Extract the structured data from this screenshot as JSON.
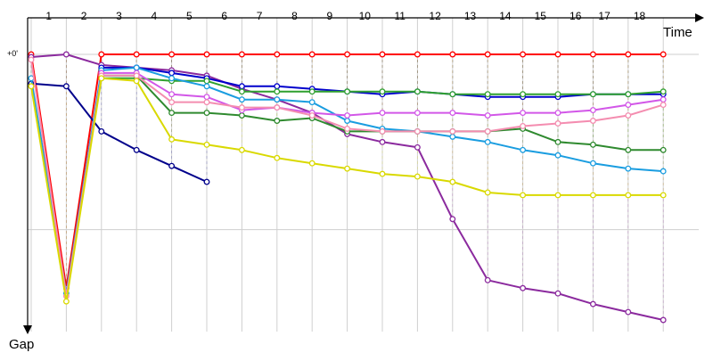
{
  "chart_data": {
    "type": "line",
    "title": "",
    "xlabel": "Time",
    "ylabel": "Gap",
    "zero_label": "+0'",
    "laps": [
      "1",
      "2",
      "3",
      "4",
      "5",
      "6",
      "7",
      "8",
      "9",
      "10",
      "11",
      "12",
      "13",
      "14",
      "15",
      "16",
      "17",
      "18"
    ],
    "x_range": [
      1,
      20
    ],
    "y_range": [
      0,
      100
    ],
    "y_axis_direction": "down",
    "grid": true,
    "legend": "none",
    "series": [
      {
        "color": "#ff0000",
        "points": [
          [
            1,
            0
          ],
          [
            2,
            88
          ],
          [
            3,
            0
          ],
          [
            4,
            0
          ],
          [
            5,
            0
          ],
          [
            6,
            0
          ],
          [
            7,
            0
          ],
          [
            8,
            0
          ],
          [
            9,
            0
          ],
          [
            10,
            0
          ],
          [
            11,
            0
          ],
          [
            12,
            0
          ],
          [
            13,
            0
          ],
          [
            14,
            0
          ],
          [
            15,
            0
          ],
          [
            16,
            0
          ],
          [
            17,
            0
          ],
          [
            18,
            0
          ],
          [
            19,
            0
          ]
        ]
      },
      {
        "color": "#8b2a9e",
        "points": [
          [
            1,
            1
          ],
          [
            2,
            0
          ],
          [
            3,
            4
          ],
          [
            4,
            5
          ],
          [
            5,
            6
          ],
          [
            6,
            8
          ],
          [
            7,
            13
          ],
          [
            8,
            17
          ],
          [
            9,
            22
          ],
          [
            10,
            30
          ],
          [
            11,
            33
          ],
          [
            12,
            35
          ],
          [
            13,
            62
          ],
          [
            14,
            85
          ],
          [
            15,
            88
          ],
          [
            16,
            90
          ],
          [
            17,
            94
          ],
          [
            18,
            97
          ],
          [
            19,
            100
          ]
        ]
      },
      {
        "color": "#00008b",
        "points": [
          [
            1,
            11
          ],
          [
            2,
            12
          ],
          [
            3,
            29
          ],
          [
            4,
            36
          ],
          [
            5,
            42
          ],
          [
            6,
            48
          ]
        ]
      },
      {
        "color": "#0000cc",
        "points": [
          [
            3,
            5
          ],
          [
            4,
            5
          ],
          [
            5,
            7
          ],
          [
            6,
            9
          ],
          [
            7,
            12
          ],
          [
            8,
            12
          ],
          [
            9,
            13
          ],
          [
            10,
            14
          ],
          [
            11,
            15
          ],
          [
            12,
            14
          ],
          [
            13,
            15
          ],
          [
            14,
            16
          ],
          [
            15,
            16
          ],
          [
            16,
            16
          ],
          [
            17,
            15
          ],
          [
            18,
            15
          ],
          [
            19,
            15
          ]
        ]
      },
      {
        "color": "#2fa02f",
        "points": [
          [
            3,
            9
          ],
          [
            4,
            9
          ],
          [
            5,
            10
          ],
          [
            6,
            10
          ],
          [
            7,
            14
          ],
          [
            8,
            14
          ],
          [
            9,
            14
          ],
          [
            10,
            14
          ],
          [
            11,
            14
          ],
          [
            12,
            14
          ],
          [
            13,
            15
          ],
          [
            14,
            15
          ],
          [
            15,
            15
          ],
          [
            16,
            15
          ],
          [
            17,
            15
          ],
          [
            18,
            15
          ],
          [
            19,
            14
          ]
        ]
      },
      {
        "color": "#1a9de0",
        "points": [
          [
            1,
            9
          ],
          [
            2,
            90
          ],
          [
            3,
            6
          ],
          [
            4,
            5
          ],
          [
            5,
            9
          ],
          [
            6,
            12
          ],
          [
            7,
            17
          ],
          [
            8,
            17
          ],
          [
            9,
            18
          ],
          [
            10,
            25
          ],
          [
            11,
            28
          ],
          [
            12,
            29
          ],
          [
            13,
            31
          ],
          [
            14,
            33
          ],
          [
            15,
            36
          ],
          [
            16,
            38
          ],
          [
            17,
            41
          ],
          [
            18,
            43
          ],
          [
            19,
            44
          ]
        ]
      },
      {
        "color": "#2f8a2f",
        "points": [
          [
            3,
            8
          ],
          [
            4,
            8
          ],
          [
            5,
            22
          ],
          [
            6,
            22
          ],
          [
            7,
            23
          ],
          [
            8,
            25
          ],
          [
            9,
            24
          ],
          [
            10,
            29
          ],
          [
            11,
            29
          ],
          [
            12,
            29
          ],
          [
            13,
            29
          ],
          [
            14,
            29
          ],
          [
            15,
            28
          ],
          [
            16,
            33
          ],
          [
            17,
            34
          ],
          [
            18,
            36
          ],
          [
            19,
            36
          ]
        ]
      },
      {
        "color": "#d257e8",
        "points": [
          [
            3,
            7
          ],
          [
            4,
            7
          ],
          [
            5,
            15
          ],
          [
            6,
            16
          ],
          [
            7,
            21
          ],
          [
            8,
            20
          ],
          [
            9,
            22
          ],
          [
            10,
            23
          ],
          [
            11,
            22
          ],
          [
            12,
            22
          ],
          [
            13,
            22
          ],
          [
            14,
            23
          ],
          [
            15,
            22
          ],
          [
            16,
            22
          ],
          [
            17,
            21
          ],
          [
            18,
            19
          ],
          [
            19,
            17
          ]
        ]
      },
      {
        "color": "#f48db0",
        "points": [
          [
            1,
            2
          ],
          [
            2,
            91
          ],
          [
            3,
            8
          ],
          [
            4,
            8
          ],
          [
            5,
            18
          ],
          [
            6,
            18
          ],
          [
            7,
            20
          ],
          [
            8,
            20
          ],
          [
            9,
            23
          ],
          [
            10,
            28
          ],
          [
            11,
            29
          ],
          [
            12,
            29
          ],
          [
            13,
            29
          ],
          [
            14,
            29
          ],
          [
            15,
            27
          ],
          [
            16,
            26
          ],
          [
            17,
            25
          ],
          [
            18,
            23
          ],
          [
            19,
            19
          ]
        ]
      },
      {
        "color": "#d9d900",
        "points": [
          [
            1,
            12
          ],
          [
            2,
            93
          ],
          [
            3,
            9
          ],
          [
            4,
            10
          ],
          [
            5,
            32
          ],
          [
            6,
            34
          ],
          [
            7,
            36
          ],
          [
            8,
            39
          ],
          [
            9,
            41
          ],
          [
            10,
            43
          ],
          [
            11,
            45
          ],
          [
            12,
            46
          ],
          [
            13,
            48
          ],
          [
            14,
            52
          ],
          [
            15,
            53
          ],
          [
            16,
            53
          ],
          [
            17,
            53
          ],
          [
            18,
            53
          ],
          [
            19,
            53
          ]
        ]
      }
    ]
  }
}
